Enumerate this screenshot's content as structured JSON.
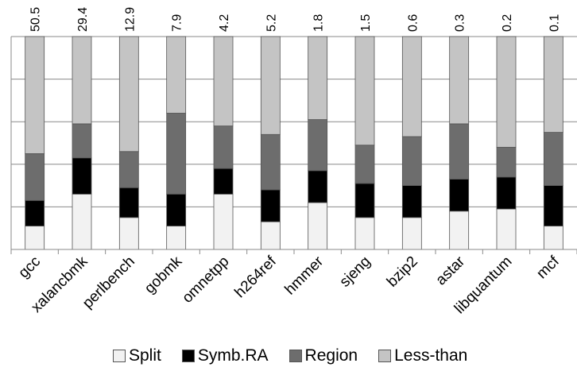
{
  "chart_data": {
    "type": "bar",
    "stacked": true,
    "normalized": true,
    "ylim": [
      0,
      100
    ],
    "grid": true,
    "legend_position": "bottom",
    "categories": [
      "gcc",
      "xalancbmk",
      "perlbench",
      "gobmk",
      "omnetpp",
      "h264ref",
      "hmmer",
      "sjeng",
      "bzip2",
      "astar",
      "libquantum",
      "mcf"
    ],
    "top_labels": [
      "50.5",
      "29.4",
      "12.9",
      "7.9",
      "4.2",
      "5.2",
      "1.8",
      "1.5",
      "0.6",
      "0.3",
      "0.2",
      "0.1"
    ],
    "series": [
      {
        "name": "Split",
        "color": "#f2f2f2",
        "values": [
          11,
          26,
          15,
          11,
          26,
          13,
          22,
          15,
          15,
          18,
          19,
          11
        ]
      },
      {
        "name": "Symb.RA",
        "color": "#000000",
        "values": [
          12,
          17,
          14,
          15,
          12,
          15,
          15,
          16,
          15,
          15,
          15,
          19
        ]
      },
      {
        "name": "Region",
        "color": "#6d6d6d",
        "values": [
          22,
          16,
          17,
          38,
          20,
          26,
          24,
          18,
          23,
          26,
          14,
          25
        ]
      },
      {
        "name": "Less-than",
        "color": "#c4c4c4",
        "values": [
          55,
          41,
          54,
          36,
          42,
          46,
          39,
          51,
          47,
          41,
          52,
          45
        ]
      }
    ]
  }
}
